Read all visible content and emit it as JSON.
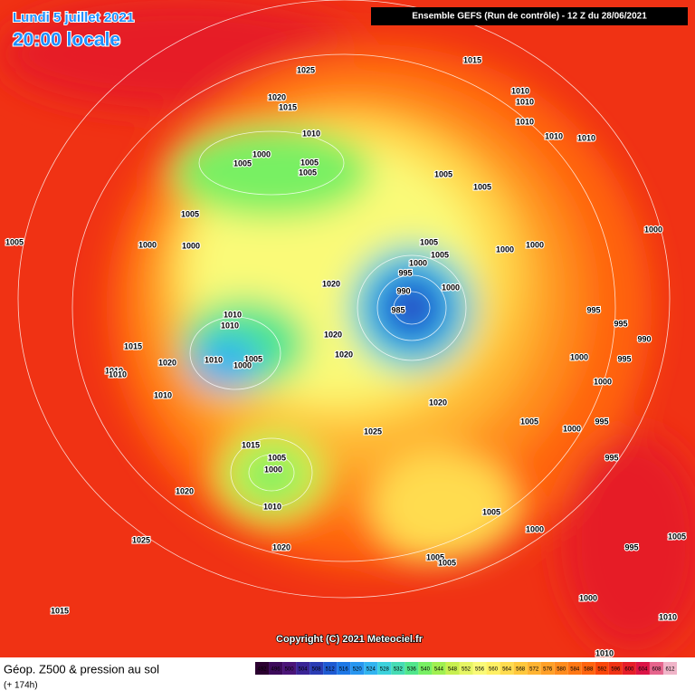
{
  "header": {
    "date": "Lundi 5 juillet 2021",
    "time": "20:00 locale",
    "run": "Ensemble GEFS  (Run de contrôle)  -  12 Z du 28/06/2021"
  },
  "map": {
    "pressure_labels": [
      1025,
      1015,
      1010,
      1010,
      1010,
      1020,
      1015,
      1010,
      1010,
      1010,
      1000,
      1005,
      1005,
      1005,
      1005,
      1005,
      1005,
      1005,
      1000,
      1000,
      1005,
      1005,
      1000,
      995,
      1000,
      1000,
      1000,
      1020,
      990,
      1000,
      985,
      1010,
      995,
      995,
      990,
      1010,
      1020,
      1020,
      1015,
      1020,
      1010,
      1005,
      1000,
      1010,
      1010,
      1000,
      995,
      1000,
      1010,
      1020,
      1005,
      1000,
      995,
      1025,
      1015,
      1005,
      1000,
      995,
      1020,
      1010,
      1005,
      1000,
      1025,
      1020,
      995,
      1005,
      1005,
      1005,
      1015,
      1000,
      1010,
      1010
    ],
    "copyright": "Copyright (C) 2021 Meteociel.fr"
  },
  "footer": {
    "title": "Géop. Z500 & pression au sol",
    "lead": "(+ 174h)"
  },
  "colorbar": {
    "ticks": [
      492,
      496,
      500,
      504,
      508,
      512,
      516,
      520,
      524,
      528,
      532,
      536,
      540,
      544,
      548,
      552,
      556,
      560,
      564,
      568,
      572,
      576,
      580,
      584,
      588,
      592,
      596,
      600,
      604,
      608,
      612
    ],
    "colors": [
      "#2b0030",
      "#3c0a5a",
      "#4b1478",
      "#3a2496",
      "#2a3cb4",
      "#1e5ad2",
      "#1e78e6",
      "#2896f0",
      "#32b4f0",
      "#3cd2dc",
      "#46dcb4",
      "#50e68c",
      "#78f064",
      "#a0f050",
      "#c8f050",
      "#e6f564",
      "#fafa78",
      "#fff064",
      "#ffdc50",
      "#ffc83c",
      "#ffb432",
      "#ffa028",
      "#ff8c1e",
      "#ff7814",
      "#ff640f",
      "#fa460a",
      "#f03214",
      "#e61e28",
      "#dc1446",
      "#e6648c",
      "#f0b4c8"
    ]
  }
}
